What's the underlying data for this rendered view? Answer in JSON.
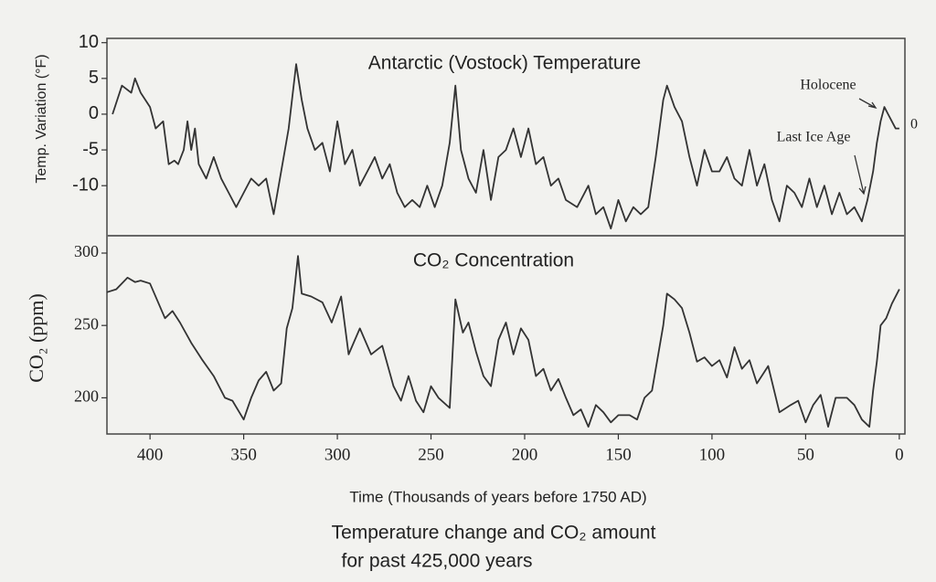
{
  "chart_data": [
    {
      "type": "line",
      "title": "Antarctic (Vostock) Temperature",
      "ylabel": "Temp. Variation (°F)",
      "x": [
        420,
        415,
        410,
        408,
        405,
        400,
        397,
        393,
        390,
        387,
        385,
        382,
        380,
        378,
        376,
        374,
        370,
        366,
        362,
        358,
        354,
        350,
        346,
        342,
        338,
        334,
        330,
        326,
        322,
        319,
        316,
        312,
        308,
        304,
        300,
        296,
        292,
        288,
        284,
        280,
        276,
        272,
        268,
        264,
        260,
        256,
        252,
        248,
        244,
        240,
        237,
        234,
        230,
        226,
        222,
        218,
        214,
        210,
        206,
        202,
        198,
        194,
        190,
        186,
        182,
        178,
        172,
        166,
        162,
        158,
        154,
        150,
        146,
        142,
        138,
        134,
        130,
        126,
        124,
        120,
        116,
        112,
        108,
        104,
        100,
        96,
        92,
        88,
        84,
        80,
        76,
        72,
        68,
        64,
        60,
        56,
        52,
        48,
        44,
        40,
        36,
        32,
        28,
        24,
        20,
        17,
        14,
        12,
        10,
        8,
        6,
        4,
        2,
        0
      ],
      "values": [
        0,
        4,
        3,
        5,
        3,
        1,
        -2,
        -1,
        -7,
        -6.5,
        -7,
        -5,
        -1,
        -5,
        -2,
        -7,
        -9,
        -6,
        -9,
        -11,
        -13,
        -11,
        -9,
        -10,
        -9,
        -14,
        -8,
        -2,
        7,
        2,
        -2,
        -5,
        -4,
        -8,
        -1,
        -7,
        -5,
        -10,
        -8,
        -6,
        -9,
        -7,
        -11,
        -13,
        -12,
        -13,
        -10,
        -13,
        -10,
        -4,
        4,
        -5,
        -9,
        -11,
        -5,
        -12,
        -6,
        -5,
        -2,
        -6,
        -2,
        -7,
        -6,
        -10,
        -9,
        -12,
        -13,
        -10,
        -14,
        -13,
        -16,
        -12,
        -15,
        -13,
        -14,
        -13,
        -6,
        2,
        4,
        1,
        -1,
        -6,
        -10,
        -5,
        -8,
        -8,
        -6,
        -9,
        -10,
        -5,
        -10,
        -7,
        -12,
        -15,
        -10,
        -11,
        -13,
        -9,
        -13,
        -10,
        -14,
        -11,
        -14,
        -13,
        -15,
        -12,
        -8,
        -4,
        -1,
        1,
        0,
        -1,
        -2,
        -2
      ],
      "color": "#333333",
      "xlim": [
        423,
        -3
      ],
      "ylim": [
        -17,
        10.6
      ],
      "yticks": [
        10,
        5,
        0,
        -5,
        -10
      ],
      "annotations": [
        "Holocene",
        "Last Ice Age",
        "0"
      ]
    },
    {
      "type": "line",
      "title": "CO₂ Concentration",
      "ylabel": "CO₂ (ppm)",
      "xlabel": "Time (Thousands of years before 1750 AD)",
      "x": [
        423,
        418,
        412,
        408,
        405,
        400,
        396,
        392,
        388,
        384,
        378,
        372,
        366,
        360,
        356,
        350,
        346,
        342,
        338,
        334,
        330,
        327,
        324,
        321,
        319,
        314,
        308,
        303,
        298,
        294,
        288,
        282,
        276,
        270,
        266,
        262,
        258,
        254,
        250,
        246,
        240,
        237,
        233,
        230,
        226,
        222,
        218,
        214,
        210,
        206,
        202,
        198,
        194,
        190,
        186,
        182,
        178,
        174,
        170,
        166,
        162,
        158,
        154,
        150,
        144,
        140,
        136,
        132,
        126,
        124,
        120,
        116,
        112,
        108,
        104,
        100,
        96,
        92,
        88,
        84,
        80,
        76,
        70,
        64,
        58,
        54,
        50,
        46,
        42,
        38,
        34,
        28,
        24,
        20,
        16,
        14,
        12,
        10,
        7,
        4,
        0
      ],
      "values": [
        273,
        275,
        283,
        280,
        281,
        279,
        267,
        255,
        260,
        252,
        238,
        226,
        215,
        200,
        198,
        185,
        200,
        212,
        218,
        205,
        210,
        248,
        262,
        298,
        272,
        270,
        266,
        252,
        270,
        230,
        248,
        230,
        236,
        208,
        198,
        215,
        198,
        190,
        208,
        200,
        193,
        268,
        245,
        252,
        232,
        215,
        208,
        240,
        252,
        230,
        248,
        240,
        215,
        220,
        205,
        213,
        200,
        188,
        192,
        180,
        195,
        190,
        183,
        188,
        188,
        185,
        200,
        205,
        250,
        272,
        268,
        262,
        245,
        225,
        228,
        222,
        226,
        214,
        235,
        220,
        226,
        210,
        222,
        190,
        195,
        198,
        183,
        195,
        202,
        180,
        200,
        200,
        195,
        185,
        180,
        205,
        225,
        250,
        255,
        265,
        275
      ],
      "color": "#333333",
      "xlim": [
        423,
        -3
      ],
      "ylim": [
        175,
        312
      ],
      "yticks": [
        300,
        250,
        200
      ],
      "xticks": [
        400,
        350,
        300,
        250,
        200,
        150,
        100,
        50,
        0
      ]
    }
  ],
  "caption": [
    "Temperature change and CO₂ amount",
    "for past 425,000 years"
  ]
}
